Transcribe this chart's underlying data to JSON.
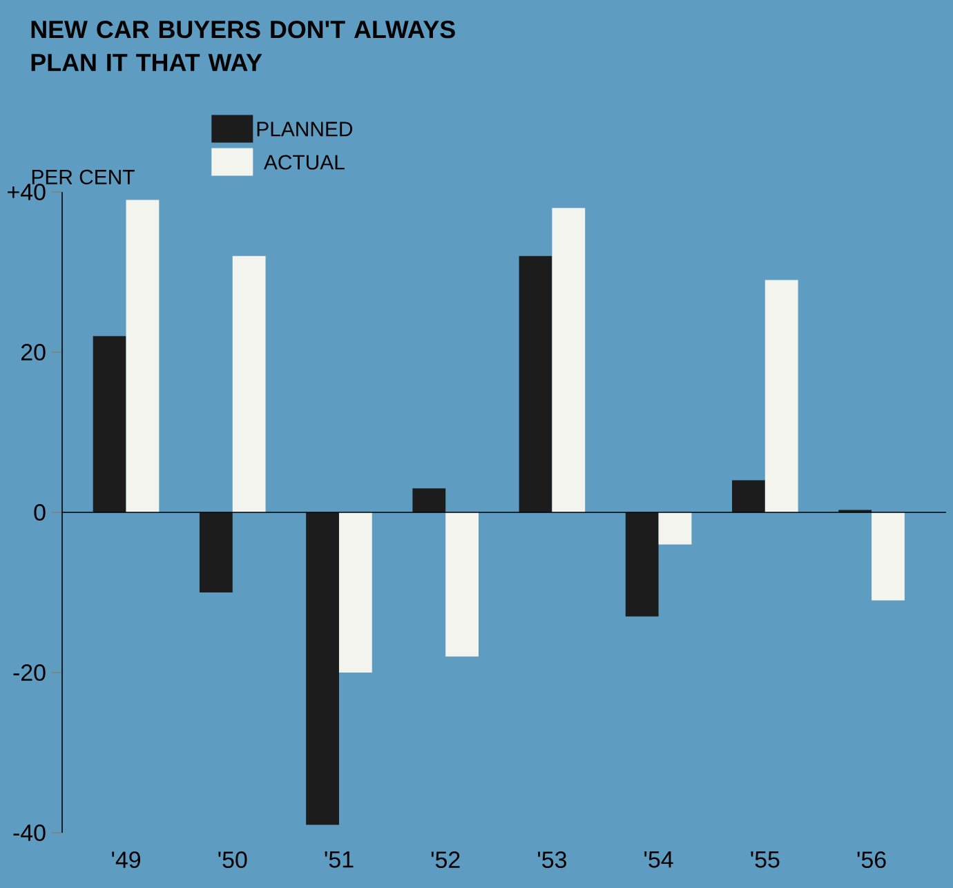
{
  "chart_data": {
    "type": "bar",
    "title": "NEW CAR BUYERS DON'T ALWAYS PLAN IT THAT WAY",
    "ylabel": "PER CENT",
    "categories": [
      "'49",
      "'50",
      "'51",
      "'52",
      "'53",
      "'54",
      "'55",
      "'56"
    ],
    "series": [
      {
        "name": "PLANNED",
        "color": "#1c1c1c",
        "values": [
          22,
          -10,
          -39,
          3,
          32,
          -13,
          4,
          0.3
        ]
      },
      {
        "name": "ACTUAL",
        "color": "#f4f4ee",
        "values": [
          39,
          32,
          -20,
          -18,
          38,
          -4,
          29,
          -11
        ]
      }
    ],
    "ylim": [
      -40,
      40
    ],
    "yticks": [
      -40,
      -20,
      0,
      20,
      {
        "value": 40,
        "label": "+40"
      }
    ],
    "legend": "top left"
  }
}
